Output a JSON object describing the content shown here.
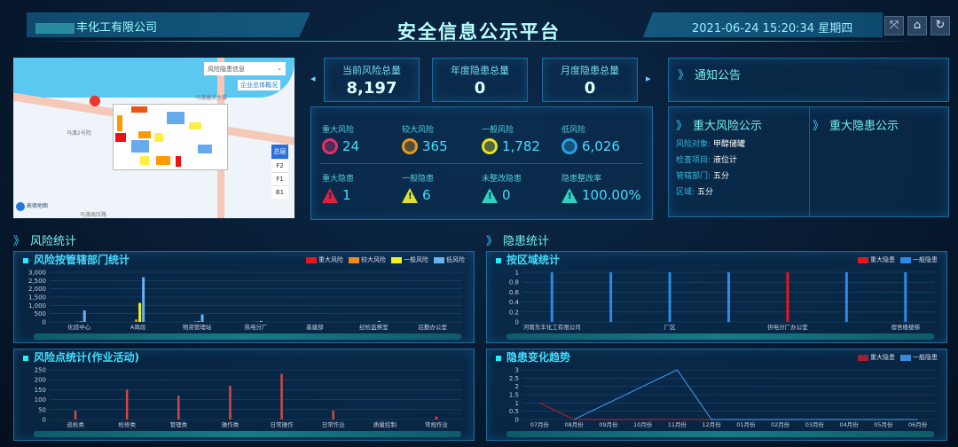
{
  "header": {
    "company": "丰化工有限公司",
    "title": "安全信息公示平台",
    "datetime": "2021-06-24 15:20:34 星期四",
    "buttons": [
      "fullscreen-icon",
      "home-icon",
      "logout-icon"
    ]
  },
  "map": {
    "dropdown": "风险隐患信息",
    "overview_button": "企业总体概况",
    "road1": "马渡磨沃大楼",
    "road2": "马渡2号院",
    "road3": "马渡高压路",
    "floors": [
      "总层",
      "F2",
      "F1",
      "B1"
    ],
    "active_floor": "总层",
    "logo": "高德地图"
  },
  "kpis": [
    {
      "label": "当前风险总量",
      "value": "8,197"
    },
    {
      "label": "年度隐患总量",
      "value": "0"
    },
    {
      "label": "月度隐患总量",
      "value": "0"
    }
  ],
  "stats": {
    "risks": [
      {
        "label": "重大风险",
        "value": "24",
        "color": "#e0306a"
      },
      {
        "label": "较大风险",
        "value": "365",
        "color": "#e89a20"
      },
      {
        "label": "一般风险",
        "value": "1,782",
        "color": "#e8e020"
      },
      {
        "label": "低风险",
        "value": "6,026",
        "color": "#2aa0e0"
      }
    ],
    "hazards": [
      {
        "label": "重大隐患",
        "value": "1",
        "color": "#e02040"
      },
      {
        "label": "一般隐患",
        "value": "6",
        "color": "#e0e030"
      },
      {
        "label": "未整改隐患",
        "value": "0",
        "color": "#30d0c0"
      },
      {
        "label": "隐患整改率",
        "value": "100.00%",
        "color": "#30d0c0"
      }
    ]
  },
  "notice": {
    "title": "通知公告"
  },
  "major_risk": {
    "title": "重大风险公示",
    "rows": [
      {
        "k": "风险对象:",
        "v": "甲醇储罐"
      },
      {
        "k": "检查项目:",
        "v": "液位计"
      },
      {
        "k": "管辖部门:",
        "v": "五分"
      },
      {
        "k": "区域:",
        "v": "五分"
      }
    ]
  },
  "major_hazard": {
    "title": "重大隐患公示"
  },
  "sections": {
    "risk": "风险统计",
    "hazard": "隐患统计"
  },
  "chart_data": [
    {
      "type": "bar",
      "title": "风险按管辖部门统计",
      "categories": [
        "化验中心",
        "A周段",
        "物资管理站",
        "热电分厂",
        "基建部",
        "纪检监察室",
        "后勤办公室"
      ],
      "ylim": [
        0,
        3000
      ],
      "yticks": [
        "0",
        "500",
        "1,000",
        "1,500",
        "2,000",
        "2,500",
        "3,000"
      ],
      "series": [
        {
          "name": "重大风险",
          "color": "#e8141e",
          "values": [
            5,
            10,
            3,
            2,
            0,
            0,
            0
          ]
        },
        {
          "name": "较大风险",
          "color": "#f08a1c",
          "values": [
            20,
            150,
            30,
            10,
            0,
            0,
            0
          ]
        },
        {
          "name": "一般风险",
          "color": "#f0f020",
          "values": [
            30,
            1150,
            40,
            10,
            0,
            0,
            0
          ]
        },
        {
          "name": "低风险",
          "color": "#6ab0f0",
          "values": [
            700,
            2700,
            450,
            60,
            0,
            60,
            0
          ]
        }
      ]
    },
    {
      "type": "bar",
      "title": "按区域统计",
      "categories": [
        "河南东丰化工有限公司",
        "",
        "厂区",
        "",
        "供电分厂办公室",
        "",
        "宿舍楼楼梯"
      ],
      "ylim": [
        0,
        1
      ],
      "yticks": [
        "0",
        "0.2",
        "0.4",
        "0.6",
        "0.8",
        "1"
      ],
      "series": [
        {
          "name": "重大隐患",
          "color": "#e8141e",
          "values": [
            0,
            0,
            0,
            0,
            1,
            0,
            0
          ]
        },
        {
          "name": "一般隐患",
          "color": "#2a8ae8",
          "values": [
            1,
            1,
            1,
            1,
            0,
            1,
            1
          ]
        }
      ]
    },
    {
      "type": "bar",
      "title": "风险点统计(作业活动)",
      "categories": [
        "巡检类",
        "检修类",
        "管理类",
        "操作类",
        "日常操作",
        "日常作业",
        "质量控制",
        "常规作业"
      ],
      "ylim": [
        0,
        250
      ],
      "yticks": [
        "0",
        "50",
        "100",
        "150",
        "200",
        "250"
      ],
      "series": [
        {
          "color": "#d04848",
          "values": [
            45,
            150,
            120,
            170,
            230,
            45,
            0,
            15
          ]
        }
      ]
    },
    {
      "type": "line",
      "title": "隐患变化趋势",
      "categories": [
        "07月份",
        "08月份",
        "09月份",
        "10月份",
        "11月份",
        "12月份",
        "01月份",
        "02月份",
        "03月份",
        "04月份",
        "05月份",
        "06月份"
      ],
      "ylim": [
        0,
        3
      ],
      "yticks": [
        "0",
        "0.5",
        "1",
        "1.5",
        "2",
        "2.5",
        "3"
      ],
      "series": [
        {
          "name": "重大隐患",
          "color": "#a02030",
          "values": [
            1,
            0,
            0,
            0,
            0,
            0,
            null,
            null,
            null,
            null,
            null,
            null
          ]
        },
        {
          "name": "一般隐患",
          "color": "#3a8ad8",
          "values": [
            null,
            0,
            1,
            2,
            3,
            0,
            0,
            0,
            0,
            0,
            0,
            0
          ]
        }
      ]
    }
  ]
}
